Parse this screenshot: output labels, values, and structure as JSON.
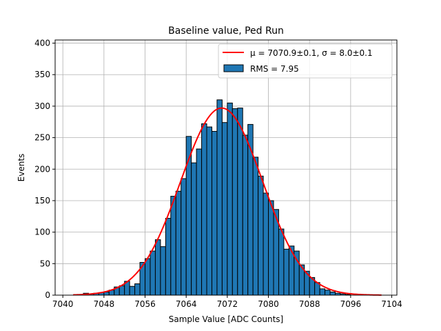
{
  "chart_data": {
    "type": "bar",
    "title": "Baseline value, Ped Run",
    "xlabel": "Sample Value [ADC Counts]",
    "ylabel": "Events",
    "xlim": [
      7038.5,
      7105
    ],
    "ylim": [
      0,
      405
    ],
    "xticks": [
      7040,
      7048,
      7056,
      7064,
      7072,
      7080,
      7088,
      7096,
      7104
    ],
    "yticks": [
      0,
      50,
      100,
      150,
      200,
      250,
      300,
      350,
      400
    ],
    "grid": true,
    "legend_position": "upper right",
    "bin_width": 1,
    "bins": {
      "left_edges": [
        7044,
        7045,
        7046,
        7047,
        7048,
        7049,
        7050,
        7051,
        7052,
        7053,
        7054,
        7055,
        7056,
        7057,
        7058,
        7059,
        7060,
        7061,
        7062,
        7063,
        7064,
        7065,
        7066,
        7067,
        7068,
        7069,
        7070,
        7071,
        7072,
        7073,
        7074,
        7075,
        7076,
        7077,
        7078,
        7079,
        7080,
        7081,
        7082,
        7083,
        7084,
        7085,
        7086,
        7087,
        7088,
        7089,
        7090,
        7091,
        7092,
        7093,
        7094,
        7095
      ],
      "counts": [
        3,
        2,
        3,
        4,
        5,
        8,
        13,
        15,
        22,
        14,
        18,
        52,
        58,
        70,
        88,
        77,
        122,
        157,
        165,
        185,
        252,
        210,
        232,
        272,
        267,
        260,
        310,
        274,
        305,
        296,
        297,
        254,
        271,
        219,
        189,
        162,
        150,
        136,
        105,
        73,
        78,
        70,
        48,
        38,
        28,
        20,
        10,
        8,
        5,
        3,
        2,
        1
      ]
    },
    "fit": {
      "mu": 7070.9,
      "sigma": 8.0,
      "amplitude": 297,
      "x_range": [
        7042,
        7102
      ]
    },
    "series": [
      {
        "name": "μ = 7070.9±0.1, σ = 8.0±0.1",
        "type": "line",
        "color": "#ff0000"
      },
      {
        "name": "RMS = 7.95",
        "type": "bar",
        "color": "#1f77b4"
      }
    ]
  }
}
